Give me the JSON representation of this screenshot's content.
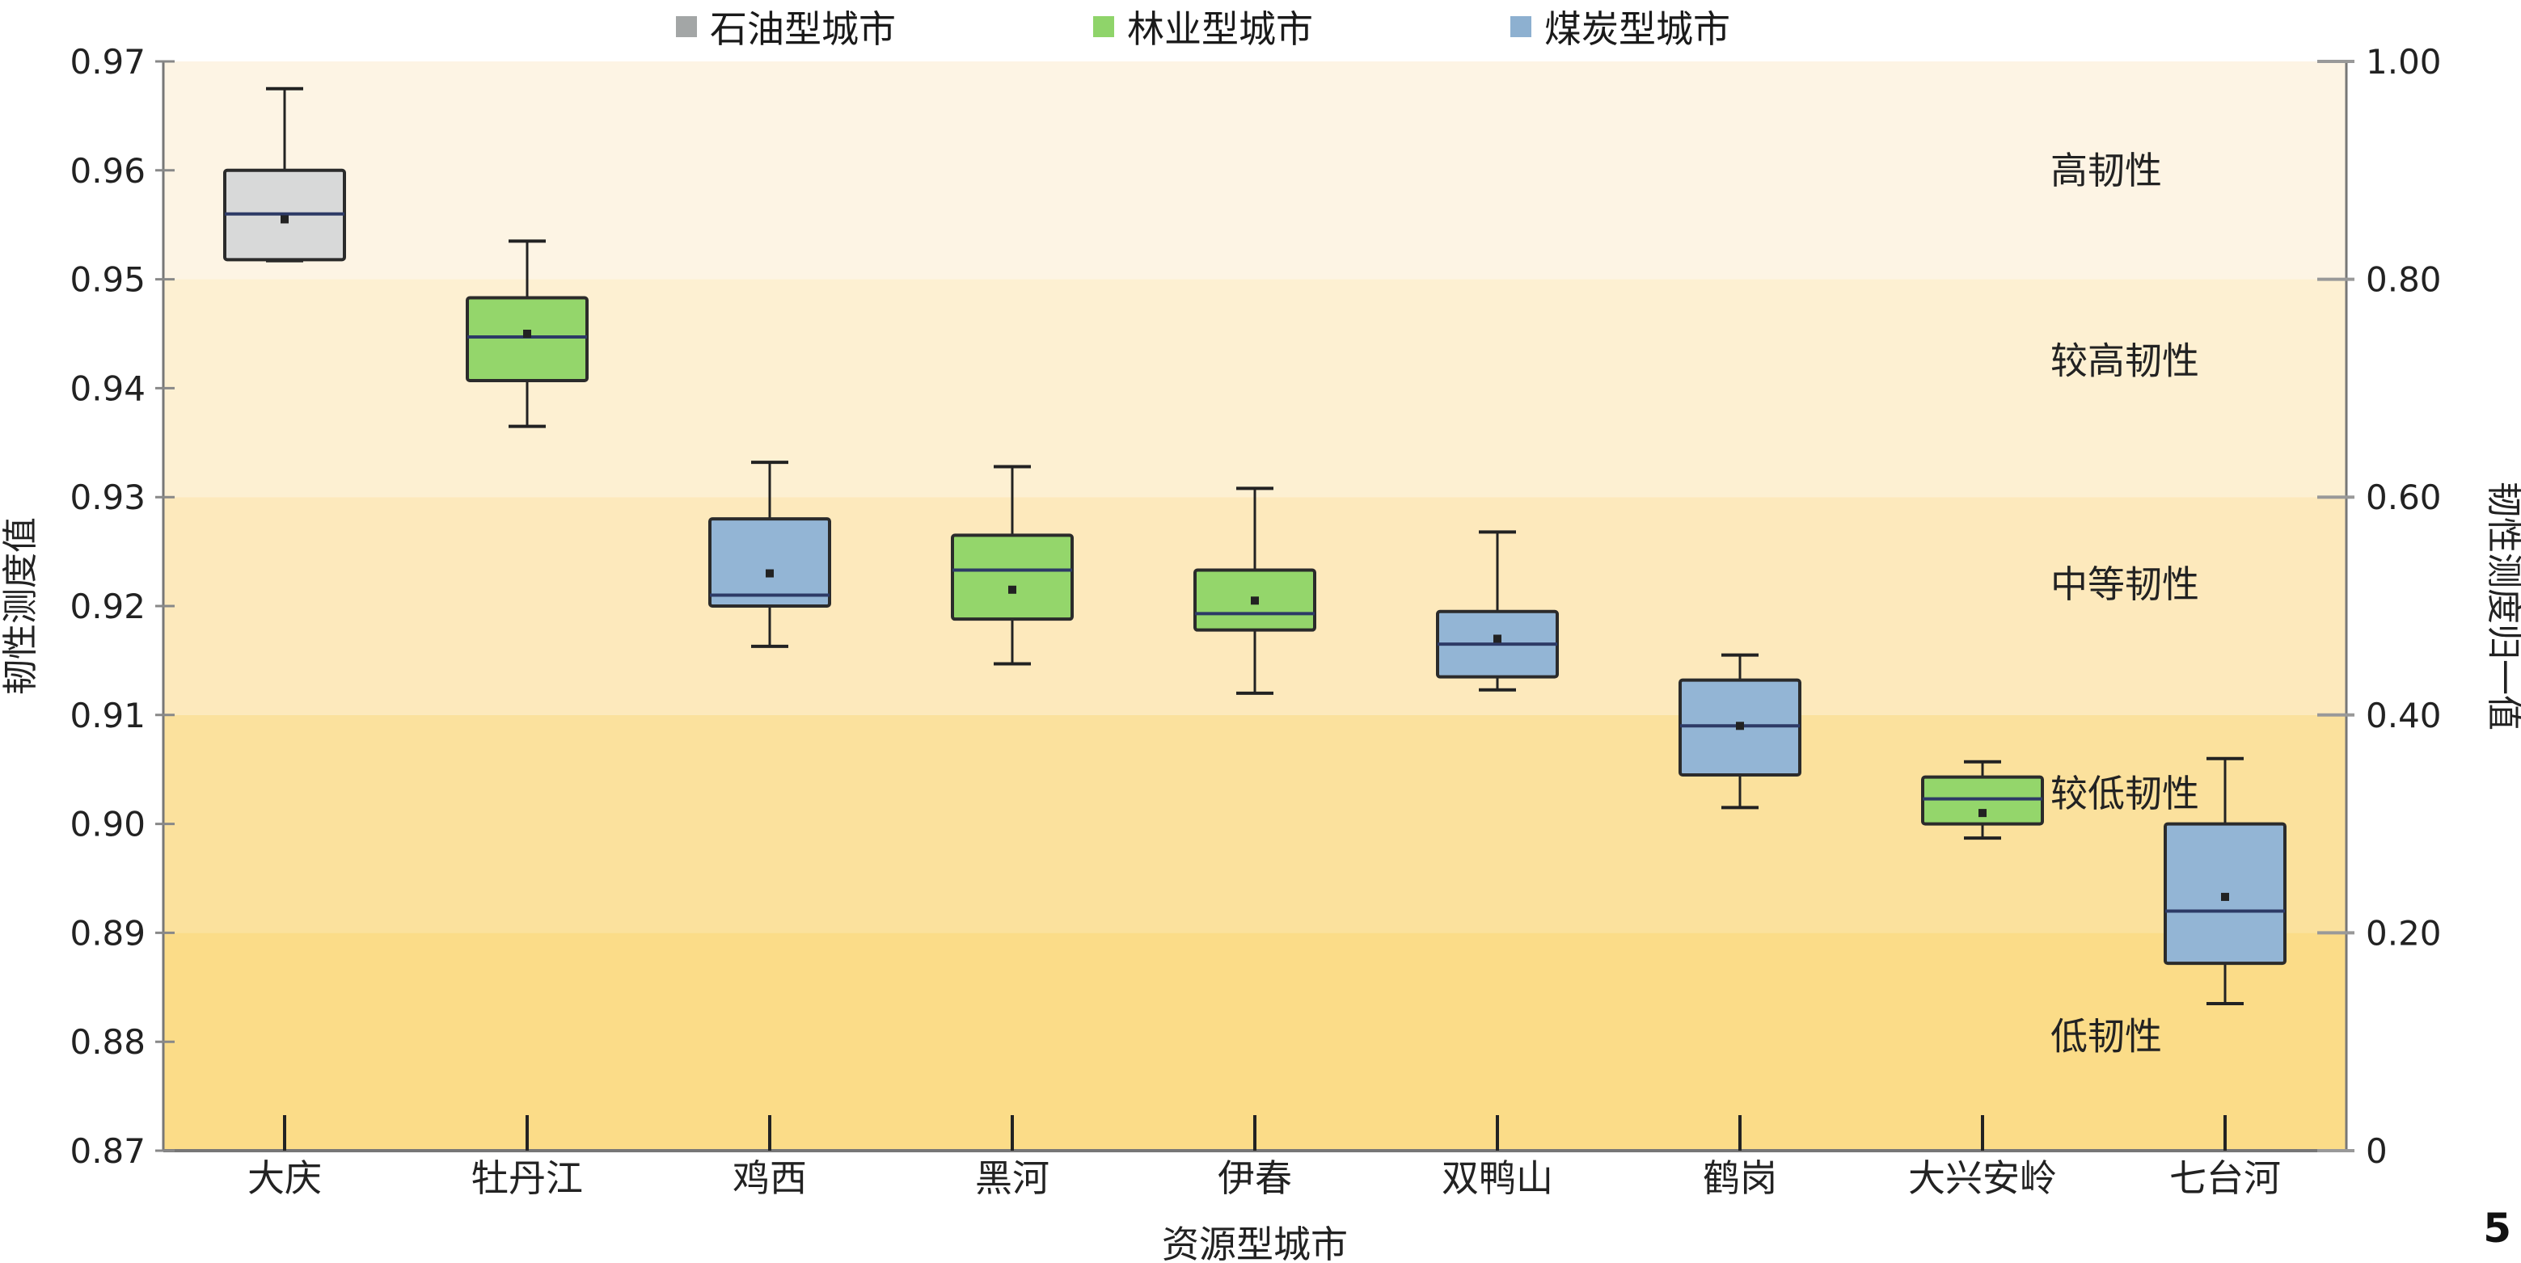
{
  "page_number": "5",
  "chart_data": {
    "type": "box",
    "xlabel": "资源型城市",
    "ylabel": "韧性测度值",
    "y2label": "韧性测度归一值",
    "ylim": [
      0.87,
      0.97
    ],
    "y2lim": [
      0,
      1.0
    ],
    "yticks": [
      "0.87",
      "0.88",
      "0.89",
      "0.90",
      "0.91",
      "0.92",
      "0.93",
      "0.94",
      "0.95",
      "0.96",
      "0.97"
    ],
    "y2ticks": [
      "0",
      "0.20",
      "0.40",
      "0.60",
      "0.80",
      "1.00"
    ],
    "legend": [
      {
        "label": "石油型城市",
        "color": "#a3a6a6"
      },
      {
        "label": "林业型城市",
        "color": "#8fd46a"
      },
      {
        "label": "煤炭型城市",
        "color": "#8db0d0"
      }
    ],
    "colors": {
      "石油": "#d8d9d9",
      "林业": "#94d66b",
      "煤炭": "#93b5d5"
    },
    "bands": [
      {
        "label": "高韧性",
        "from": 0.8,
        "to": 1.0,
        "color": "#fdf4e4"
      },
      {
        "label": "较高韧性",
        "from": 0.6,
        "to": 0.8,
        "color": "#fdf0d2"
      },
      {
        "label": "中等韧性",
        "from": 0.4,
        "to": 0.6,
        "color": "#fde9bc"
      },
      {
        "label": "较低韧性",
        "from": 0.2,
        "to": 0.4,
        "color": "#fbe19d"
      },
      {
        "label": "低韧性",
        "from": 0.0,
        "to": 0.2,
        "color": "#fbdc88"
      }
    ],
    "band_label_values": [
      0.9,
      0.725,
      0.52,
      0.328,
      0.105
    ],
    "categories": [
      {
        "name": "大庆",
        "type": "石油",
        "min": 0.9517,
        "q1": 0.9518,
        "median": 0.956,
        "q3": 0.96,
        "max": 0.9675,
        "mean": 0.9555
      },
      {
        "name": "牡丹江",
        "type": "林业",
        "min": 0.9365,
        "q1": 0.9407,
        "median": 0.9447,
        "q3": 0.9483,
        "max": 0.9535,
        "mean": 0.945
      },
      {
        "name": "鸡西",
        "type": "煤炭",
        "min": 0.9163,
        "q1": 0.92,
        "median": 0.921,
        "q3": 0.928,
        "max": 0.9332,
        "mean": 0.923
      },
      {
        "name": "黑河",
        "type": "林业",
        "min": 0.9147,
        "q1": 0.9188,
        "median": 0.9233,
        "q3": 0.9265,
        "max": 0.9328,
        "mean": 0.9215
      },
      {
        "name": "伊春",
        "type": "林业",
        "min": 0.912,
        "q1": 0.9178,
        "median": 0.9193,
        "q3": 0.9233,
        "max": 0.9308,
        "mean": 0.9205
      },
      {
        "name": "双鸭山",
        "type": "煤炭",
        "min": 0.9123,
        "q1": 0.9135,
        "median": 0.9165,
        "q3": 0.9195,
        "max": 0.9268,
        "mean": 0.917
      },
      {
        "name": "鹤岗",
        "type": "煤炭",
        "min": 0.9015,
        "q1": 0.9045,
        "median": 0.909,
        "q3": 0.9132,
        "max": 0.9155,
        "mean": 0.909
      },
      {
        "name": "大兴安岭",
        "type": "林业",
        "min": 0.8987,
        "q1": 0.9,
        "median": 0.9023,
        "q3": 0.9043,
        "max": 0.9057,
        "mean": 0.901
      },
      {
        "name": "七台河",
        "type": "煤炭",
        "min": 0.8835,
        "q1": 0.8872,
        "median": 0.892,
        "q3": 0.9,
        "max": 0.906,
        "mean": 0.8933
      }
    ]
  }
}
